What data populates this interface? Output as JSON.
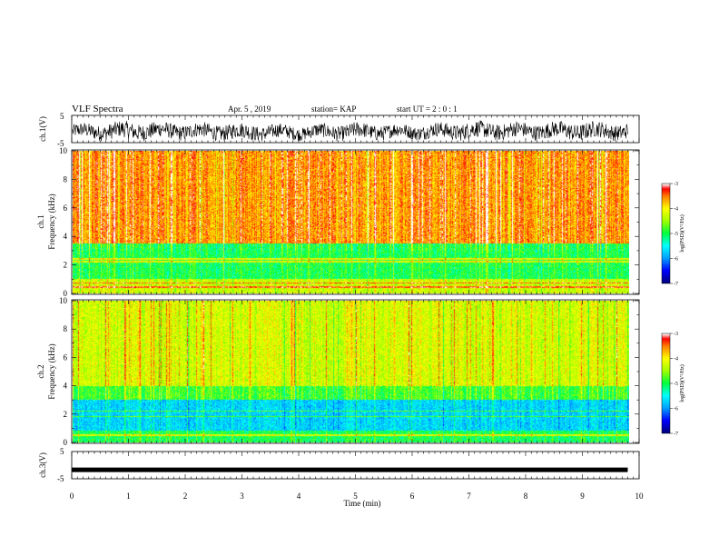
{
  "header": {
    "title": "VLF Spectra",
    "date": "Apr. 5 , 2019",
    "station": "station= KAP",
    "start_ut": "start UT = 2 : 0 : 1"
  },
  "colors": {
    "spectrogram_scale": [
      "#000080",
      "#0000ff",
      "#00ffff",
      "#00ff40",
      "#ffff00",
      "#ff8000",
      "#ff0000",
      "#ffffff"
    ],
    "trace": "#000000"
  },
  "chart_data": [
    {
      "type": "line",
      "name": "ch1-waveform",
      "ylabel": "ch.1(V)",
      "ylim": [
        -5,
        5
      ],
      "yticks": [
        "5",
        "-5"
      ],
      "xlim": [
        0,
        10
      ],
      "description_level": "noisy oscillating signal roughly between -4 and 2 V",
      "approx_envelope": {
        "x": [
          0,
          1,
          2,
          3,
          4,
          5,
          6,
          7,
          8,
          9,
          9.8
        ],
        "low": [
          -3.5,
          -3.8,
          -3.5,
          -4,
          -3.6,
          -3.8,
          -3.4,
          -3.7,
          -3.5,
          -3.8,
          -3.6
        ],
        "high": [
          1.5,
          2.5,
          2,
          1.8,
          1.2,
          2,
          1.5,
          2.5,
          2.2,
          2.4,
          2
        ]
      }
    },
    {
      "type": "heatmap",
      "name": "ch1-spectrogram",
      "ylabel": "ch.1",
      "ylabel2": "Frequency (kHz)",
      "ylim": [
        0,
        10
      ],
      "yticks": [
        "0",
        "2",
        "4",
        "6",
        "8",
        "10"
      ],
      "xlim": [
        0,
        9.8
      ],
      "colorbar": {
        "label": "log(PSD)(V²/Hz)",
        "range": [
          -7,
          -3
        ],
        "ticks": [
          "-3",
          "-4",
          "-5",
          "-6",
          "-7"
        ]
      },
      "bands": [
        {
          "f_range": [
            3.5,
            10
          ],
          "level": -3.6
        },
        {
          "f_range": [
            1.0,
            3.5
          ],
          "level": -5.0
        },
        {
          "f_range": [
            0.0,
            1.0
          ],
          "level": -4.3
        }
      ],
      "lines_kHz": [
        2.2,
        2.4,
        0.7,
        0.4
      ]
    },
    {
      "type": "heatmap",
      "name": "ch2-spectrogram",
      "ylabel": "ch.2",
      "ylabel2": "Frequency (kHz)",
      "ylim": [
        0,
        10
      ],
      "yticks": [
        "0",
        "2",
        "4",
        "6",
        "8",
        "10"
      ],
      "xlim": [
        0,
        9.8
      ],
      "colorbar": {
        "label": "log(PSD)(V²/Hz)",
        "range": [
          -7,
          -3
        ],
        "ticks": [
          "-3",
          "-4",
          "-5",
          "-6",
          "-7"
        ]
      },
      "bands": [
        {
          "f_range": [
            4.0,
            10
          ],
          "level": -4.2
        },
        {
          "f_range": [
            3.0,
            4.0
          ],
          "level": -4.8
        },
        {
          "f_range": [
            0.8,
            3.0
          ],
          "level": -5.7
        },
        {
          "f_range": [
            0.0,
            0.8
          ],
          "level": -5.0
        }
      ],
      "lines_kHz": [
        1.8,
        2.2,
        0.5
      ]
    },
    {
      "type": "line",
      "name": "ch3-waveform",
      "ylabel": "ch.3(V)",
      "ylim": [
        -5,
        5
      ],
      "yticks": [
        "5",
        "-5"
      ],
      "xlim": [
        0,
        9.8
      ],
      "x": [
        0,
        9.8
      ],
      "y": [
        -1.7,
        -1.7
      ]
    }
  ],
  "xaxis": {
    "label": "Time (min)",
    "ticks": [
      "0",
      "1",
      "2",
      "3",
      "4",
      "5",
      "6",
      "7",
      "8",
      "9",
      "10"
    ],
    "range": [
      0,
      10
    ]
  }
}
